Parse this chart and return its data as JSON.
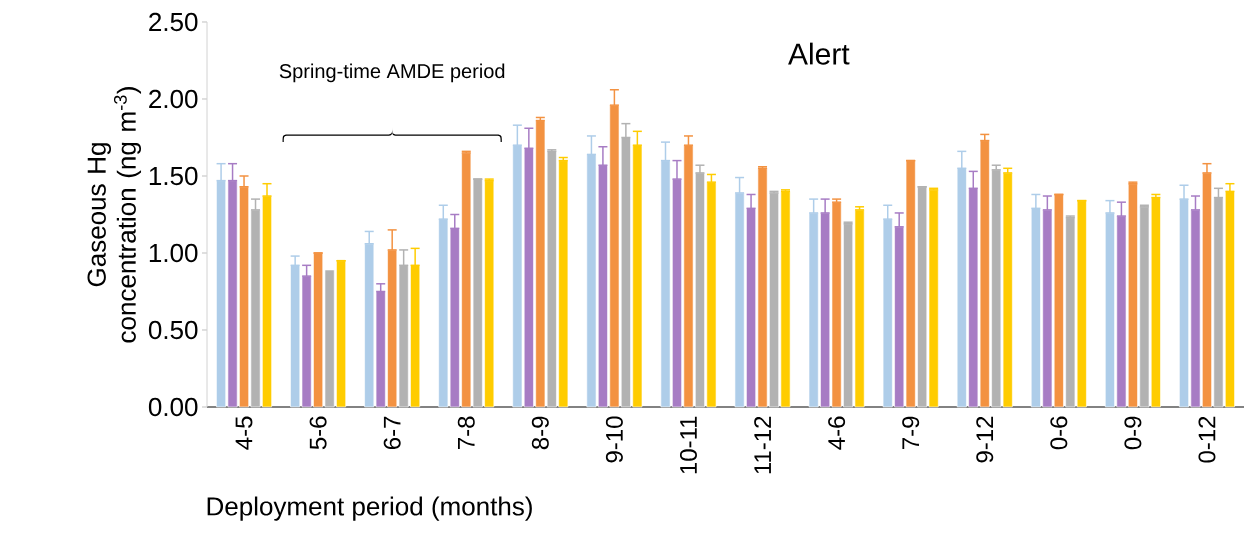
{
  "chart_data": {
    "type": "bar",
    "title": "Alert",
    "xlabel": "Deployment period (months)",
    "ylabel": "Gaseous Hg concentration (ng m$^{-3}$)",
    "annotations": [
      "Spring-time AMDE period"
    ],
    "categories": [
      "4-5",
      "5-6",
      "6-7",
      "7-8",
      "8-9",
      "9-10",
      "10-11",
      "11-12",
      "4-6",
      "7-9",
      "9-12",
      "0-6",
      "0-9",
      "0-12"
    ],
    "ylim": [
      0,
      2.5
    ],
    "yticks": [
      {
        "value": 0,
        "label": "0.00"
      },
      {
        "value": 0.5,
        "label": "0.50"
      },
      {
        "value": 1,
        "label": "1.00"
      },
      {
        "value": 1.5,
        "label": "1.50"
      },
      {
        "value": 2,
        "label": "2.00"
      },
      {
        "value": 2.5,
        "label": "2.50"
      }
    ],
    "grid": false,
    "legend": false,
    "series": [
      {
        "color": "#aecde9",
        "values": [
          1.47,
          0.92,
          1.06,
          1.22,
          1.7,
          1.64,
          1.6,
          1.39,
          1.26,
          1.22,
          1.55,
          1.29,
          1.26,
          1.35
        ],
        "errors": [
          [
            1.47,
            1.58
          ],
          [
            0.92,
            0.98
          ],
          [
            1.06,
            1.14
          ],
          [
            1.22,
            1.31
          ],
          [
            1.7,
            1.83
          ],
          [
            1.64,
            1.76
          ],
          [
            1.6,
            1.72
          ],
          [
            1.39,
            1.49
          ],
          [
            1.26,
            1.35
          ],
          [
            1.22,
            1.31
          ],
          [
            1.55,
            1.66
          ],
          [
            1.29,
            1.38
          ],
          [
            1.26,
            1.34
          ],
          [
            1.35,
            1.44
          ]
        ]
      },
      {
        "color": "#a77cc4",
        "values": [
          1.47,
          0.85,
          0.75,
          1.16,
          1.68,
          1.57,
          1.48,
          1.29,
          1.26,
          1.17,
          1.42,
          1.28,
          1.24,
          1.28
        ],
        "errors": [
          [
            1.47,
            1.58
          ],
          [
            0.85,
            0.92
          ],
          [
            0.75,
            0.8
          ],
          [
            1.16,
            1.25
          ],
          [
            1.68,
            1.81
          ],
          [
            1.57,
            1.69
          ],
          [
            1.48,
            1.6
          ],
          [
            1.29,
            1.38
          ],
          [
            1.26,
            1.35
          ],
          [
            1.17,
            1.26
          ],
          [
            1.42,
            1.53
          ],
          [
            1.28,
            1.37
          ],
          [
            1.24,
            1.33
          ],
          [
            1.28,
            1.37
          ]
        ]
      },
      {
        "color": "#f39241",
        "values": [
          1.43,
          1.0,
          1.02,
          1.65,
          1.86,
          1.96,
          1.7,
          1.55,
          1.33,
          1.6,
          1.73,
          1.38,
          1.45,
          1.52
        ],
        "errors": [
          [
            1.43,
            1.5
          ],
          [
            1.0,
            1.0
          ],
          [
            1.02,
            1.15
          ],
          [
            1.65,
            1.66
          ],
          [
            1.86,
            1.88
          ],
          [
            1.96,
            2.06
          ],
          [
            1.7,
            1.76
          ],
          [
            1.55,
            1.56
          ],
          [
            1.33,
            1.35
          ],
          [
            1.6,
            1.6
          ],
          [
            1.73,
            1.77
          ],
          [
            1.38,
            1.38
          ],
          [
            1.45,
            1.46
          ],
          [
            1.52,
            1.58
          ]
        ]
      },
      {
        "color": "#b2b2b2",
        "values": [
          1.28,
          0.89,
          0.92,
          1.48,
          1.66,
          1.75,
          1.52,
          1.39,
          1.19,
          1.43,
          1.54,
          1.23,
          1.3,
          1.36
        ],
        "errors": [
          [
            1.28,
            1.35
          ],
          null,
          [
            0.92,
            1.02
          ],
          [
            1.48,
            1.48
          ],
          [
            1.66,
            1.67
          ],
          [
            1.75,
            1.84
          ],
          [
            1.52,
            1.57
          ],
          [
            1.39,
            1.4
          ],
          [
            1.19,
            1.2
          ],
          [
            1.43,
            1.43
          ],
          [
            1.54,
            1.57
          ],
          [
            1.23,
            1.24
          ],
          [
            1.3,
            1.31
          ],
          [
            1.36,
            1.42
          ]
        ]
      },
      {
        "color": "#ffcc00",
        "values": [
          1.37,
          0.95,
          0.92,
          1.47,
          1.6,
          1.7,
          1.46,
          1.4,
          1.28,
          1.41,
          1.52,
          1.34,
          1.36,
          1.4
        ],
        "errors": [
          [
            1.37,
            1.45
          ],
          [
            0.95,
            0.95
          ],
          [
            0.92,
            1.03
          ],
          [
            1.47,
            1.48
          ],
          [
            1.6,
            1.62
          ],
          [
            1.7,
            1.79
          ],
          [
            1.46,
            1.51
          ],
          [
            1.4,
            1.41
          ],
          [
            1.28,
            1.3
          ],
          [
            1.41,
            1.42
          ],
          [
            1.52,
            1.55
          ],
          [
            1.34,
            1.34
          ],
          [
            1.36,
            1.38
          ],
          [
            1.4,
            1.45
          ]
        ]
      }
    ]
  }
}
